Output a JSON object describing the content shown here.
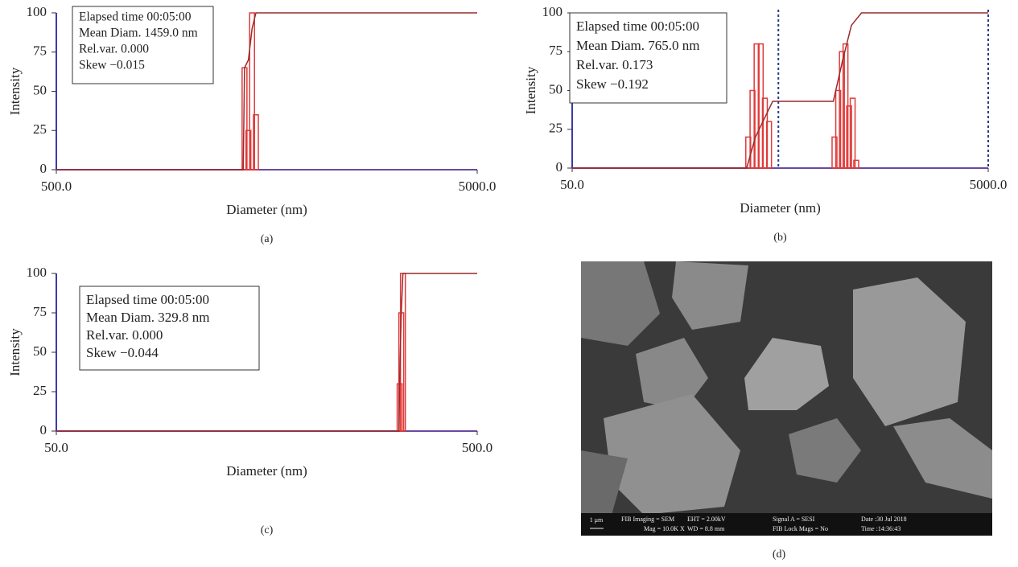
{
  "chart_data": [
    {
      "type": "bar",
      "panel_label": "(a)",
      "xlabel": "Diameter (nm)",
      "ylabel": "Intensity",
      "xscale": "log",
      "xlim": [
        500,
        5000
      ],
      "xticks": [
        {
          "value": 500,
          "label": "500.0"
        },
        {
          "value": 5000,
          "label": "5000.0"
        }
      ],
      "ylim": [
        0,
        100
      ],
      "yticks": [
        0,
        25,
        50,
        75,
        100
      ],
      "annotation": [
        "Elapsed time 00:05:00",
        "Mean Diam. 1459.0 nm",
        "Rel.var. 0.000",
        "Skew −0.015"
      ],
      "color": "#e03a3a",
      "x": [
        1400,
        1430,
        1459,
        1490
      ],
      "values": [
        65,
        25,
        100,
        35
      ],
      "cumulative": {
        "color": "#9a2a2a",
        "x": [
          500,
          1390,
          1400,
          1430,
          1459,
          1490,
          5000
        ],
        "values": [
          0,
          0,
          65,
          70,
          90,
          100,
          100
        ]
      }
    },
    {
      "type": "bar",
      "panel_label": "(b)",
      "xlabel": "Diameter (nm)",
      "ylabel": "Intensity",
      "xscale": "log",
      "xlim": [
        50,
        5000
      ],
      "xticks": [
        {
          "value": 50,
          "label": "50.0"
        },
        {
          "value": 5000,
          "label": "5000.0"
        }
      ],
      "ylim": [
        0,
        100
      ],
      "yticks": [
        0,
        25,
        50,
        75,
        100
      ],
      "annotation": [
        "Elapsed time 00:05:00",
        "Mean Diam. 765.0 nm",
        "Rel.var. 0.173",
        "Skew −0.192"
      ],
      "color": "#e03a3a",
      "x": [
        351,
        368,
        385,
        403,
        422,
        442,
        912,
        950,
        990,
        1030,
        1072,
        1115,
        1160
      ],
      "values": [
        20,
        50,
        80,
        80,
        45,
        30,
        20,
        50,
        75,
        80,
        40,
        45,
        5
      ],
      "cumulative": {
        "color": "#9a2a2a",
        "x": [
          50,
          345,
          380,
          460,
          900,
          1000,
          1100,
          1230,
          5000
        ],
        "values": [
          0,
          0,
          20,
          43,
          43,
          70,
          92,
          100,
          100
        ]
      },
      "limit_lines": {
        "color": "#2a3a8a",
        "x": [
          490,
          5000
        ]
      }
    },
    {
      "type": "bar",
      "panel_label": "(c)",
      "xlabel": "Diameter (nm)",
      "ylabel": "Intensity",
      "xscale": "log",
      "xlim": [
        50,
        500
      ],
      "xticks": [
        {
          "value": 50,
          "label": "50.0"
        },
        {
          "value": 500,
          "label": "500.0"
        }
      ],
      "ylim": [
        0,
        100
      ],
      "yticks": [
        0,
        25,
        50,
        75,
        100
      ],
      "annotation": [
        "Elapsed time 00:05:00",
        "Mean Diam. 329.8 nm",
        "Rel.var. 0.000",
        "Skew −0.044"
      ],
      "color": "#e03a3a",
      "x": [
        327,
        330,
        333
      ],
      "values": [
        30,
        75,
        100
      ],
      "cumulative": {
        "color": "#9a2a2a",
        "x": [
          50,
          326,
          327,
          330,
          333,
          500
        ],
        "values": [
          0,
          0,
          30,
          75,
          100,
          100
        ]
      }
    }
  ],
  "image": {
    "panel_label": "(d)",
    "scale": "1 μm",
    "info": [
      "FIB Imaging = SEM",
      "Mag = 10.0K X",
      "EHT = 2.00kV",
      "WD = 8.8 mm",
      "Signal A = SESI",
      "FIB Lock Mags = No",
      "Date :30 Jul 2018",
      "Time :14:36:43"
    ]
  }
}
